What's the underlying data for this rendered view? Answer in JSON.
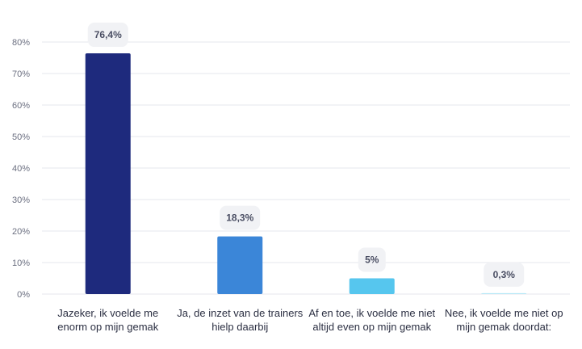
{
  "chart_data": {
    "type": "bar",
    "categories": [
      [
        "Jazeker, ik voelde me",
        "enorm op mijn gemak"
      ],
      [
        "Ja, de inzet van de trainers",
        "hielp daarbij"
      ],
      [
        "Af en toe, ik voelde me niet",
        "altijd even op mijn gemak"
      ],
      [
        "Nee, ik voelde me niet op",
        "mijn gemak doordat:"
      ]
    ],
    "values": [
      76.4,
      18.3,
      5,
      0.3
    ],
    "value_labels": [
      "76,4%",
      "18,3%",
      "5%",
      "0,3%"
    ],
    "colors": [
      "#1e2a7d",
      "#3b86d8",
      "#56c6ee",
      "#b6e8f7"
    ],
    "yticks": [
      "0%",
      "10%",
      "20%",
      "30%",
      "40%",
      "50%",
      "60%",
      "70%",
      "80%"
    ],
    "ylim": [
      0,
      80
    ],
    "grid": true,
    "title": "",
    "xlabel": "",
    "ylabel": ""
  }
}
